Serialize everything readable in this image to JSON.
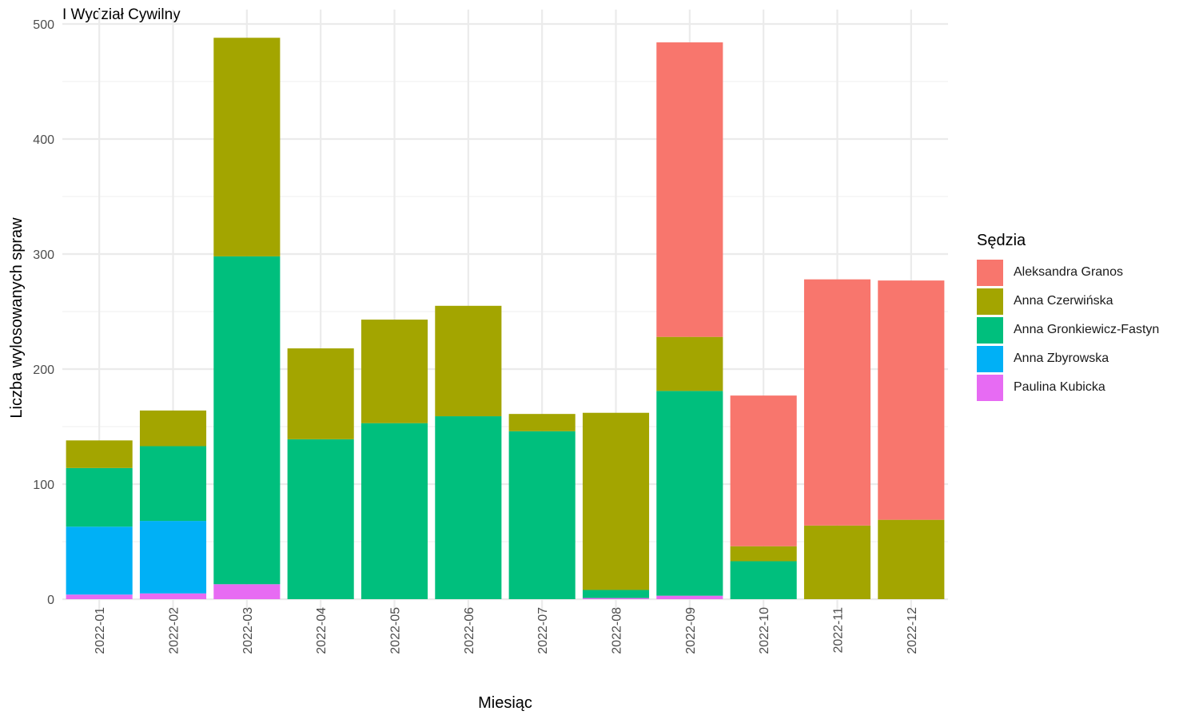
{
  "chart_data": {
    "type": "bar",
    "stacked": true,
    "title": "I Wydział Cywilny",
    "xlabel": "Miesiąc",
    "ylabel": "Liczba wylosowanych spraw",
    "ylim": [
      0,
      500
    ],
    "yticks": [
      0,
      100,
      200,
      300,
      400,
      500
    ],
    "grid": true,
    "legend_title": "Sędzia",
    "legend_position": "right",
    "categories": [
      "2022-01",
      "2022-02",
      "2022-03",
      "2022-04",
      "2022-05",
      "2022-06",
      "2022-07",
      "2022-08",
      "2022-09",
      "2022-10",
      "2022-11",
      "2022-12"
    ],
    "series": [
      {
        "name": "Aleksandra Granos",
        "color": "#F8766D",
        "values": [
          0,
          0,
          0,
          0,
          0,
          0,
          0,
          0,
          256,
          131,
          214,
          208
        ]
      },
      {
        "name": "Anna Czerwińska",
        "color": "#A3A500",
        "values": [
          24,
          31,
          190,
          79,
          90,
          96,
          15,
          154,
          47,
          13,
          64,
          69
        ]
      },
      {
        "name": "Anna Gronkiewicz-Fastyn",
        "color": "#00BF7D",
        "values": [
          51,
          65,
          285,
          139,
          153,
          159,
          146,
          7,
          178,
          33,
          0,
          0
        ]
      },
      {
        "name": "Anna Zbyrowska",
        "color": "#00B0F6",
        "values": [
          59,
          63,
          0,
          0,
          0,
          0,
          0,
          0,
          0,
          0,
          0,
          0
        ]
      },
      {
        "name": "Paulina Kubicka",
        "color": "#E76BF3",
        "values": [
          4,
          5,
          13,
          0,
          0,
          0,
          0,
          1,
          3,
          0,
          0,
          0
        ]
      }
    ]
  }
}
